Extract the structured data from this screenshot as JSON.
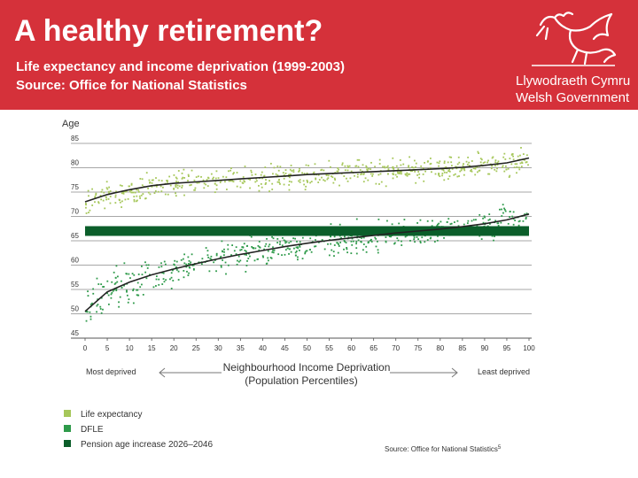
{
  "banner": {
    "title": "A healthy retirement?",
    "subtitle_line1": "Life expectancy and income deprivation (1999-2003)",
    "subtitle_line2": "Source: Office for National Statistics",
    "logo_line1": "Llywodraeth Cymru",
    "logo_line2": "Welsh Government"
  },
  "colors": {
    "banner": "#d5313a",
    "life_expectancy": "#a6c75a",
    "dfle": "#2e9a4a",
    "pension_band": "#0b5e2a",
    "trend": "#222222"
  },
  "chart_data": {
    "type": "scatter",
    "ylabel": "Age",
    "xlabel_line1": "Neighbourhood Income Deprivation",
    "xlabel_line2": "(Population Percentiles)",
    "x_left_label": "Most deprived",
    "x_right_label": "Least deprived",
    "xlim": [
      0,
      100
    ],
    "ylim": [
      45,
      85
    ],
    "x_ticks": [
      0,
      5,
      10,
      15,
      20,
      25,
      30,
      35,
      40,
      45,
      50,
      55,
      60,
      65,
      70,
      75,
      80,
      85,
      90,
      95,
      100
    ],
    "y_ticks": [
      45,
      50,
      55,
      60,
      65,
      70,
      75,
      80,
      85
    ],
    "grid": true,
    "series": [
      {
        "name": "Life expectancy",
        "x": [
          0,
          5,
          10,
          15,
          20,
          25,
          30,
          35,
          40,
          45,
          50,
          55,
          60,
          65,
          70,
          75,
          80,
          85,
          90,
          95,
          100
        ],
        "values": [
          73.0,
          74.5,
          75.5,
          76.3,
          76.8,
          77.1,
          77.4,
          77.7,
          78.0,
          78.3,
          78.6,
          78.8,
          79.0,
          79.2,
          79.4,
          79.6,
          79.8,
          80.1,
          80.5,
          81.0,
          82.0
        ]
      },
      {
        "name": "DFLE",
        "x": [
          0,
          5,
          10,
          15,
          20,
          25,
          30,
          35,
          40,
          45,
          50,
          55,
          60,
          65,
          70,
          75,
          80,
          85,
          90,
          95,
          100
        ],
        "values": [
          50.5,
          54.5,
          56.5,
          58.0,
          59.2,
          60.3,
          61.3,
          62.2,
          63.0,
          63.8,
          64.5,
          65.1,
          65.6,
          66.1,
          66.6,
          67.0,
          67.4,
          67.9,
          68.5,
          69.3,
          70.5
        ]
      }
    ],
    "pension_band": {
      "name": "Pension age increase 2026–2046",
      "from": 66,
      "to": 68
    },
    "legend": [
      {
        "label": "Life expectancy",
        "color": "#a6c75a"
      },
      {
        "label": "DFLE",
        "color": "#2e9a4a"
      },
      {
        "label": "Pension age increase 2026–2046",
        "color": "#0b5e2a"
      }
    ],
    "source_note": "Source: Office for National Statistics",
    "source_sup": "5"
  }
}
